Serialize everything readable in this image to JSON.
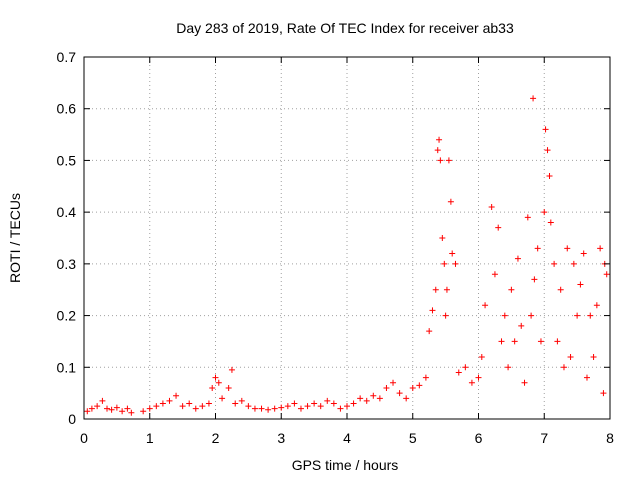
{
  "chart_data": {
    "type": "scatter",
    "marker": "+",
    "color": "#ff0000",
    "title": "Day 283 of 2019, Rate Of TEC Index for receiver ab33",
    "xlabel": "GPS time / hours",
    "ylabel": "ROTI / TECUs",
    "xlim": [
      0,
      8
    ],
    "ylim": [
      0,
      0.7
    ],
    "xticks": [
      "0",
      "1",
      "2",
      "3",
      "4",
      "5",
      "6",
      "7",
      "8"
    ],
    "yticks": [
      "0",
      "0.1",
      "0.2",
      "0.3",
      "0.4",
      "0.5",
      "0.6",
      "0.7"
    ],
    "grid": true,
    "series": [
      {
        "name": "ab33",
        "x": [
          0.05,
          0.12,
          0.2,
          0.28,
          0.35,
          0.42,
          0.5,
          0.58,
          0.66,
          0.72,
          0.9,
          1.0,
          1.1,
          1.2,
          1.3,
          1.4,
          1.5,
          1.6,
          1.7,
          1.8,
          1.9,
          1.95,
          2.0,
          2.05,
          2.1,
          2.2,
          2.25,
          2.3,
          2.4,
          2.5,
          2.6,
          2.7,
          2.8,
          2.9,
          3.0,
          3.1,
          3.2,
          3.3,
          3.4,
          3.5,
          3.6,
          3.7,
          3.8,
          3.9,
          4.0,
          4.1,
          4.2,
          4.3,
          4.4,
          4.5,
          4.6,
          4.7,
          4.8,
          4.9,
          5.0,
          5.1,
          5.2,
          5.25,
          5.3,
          5.35,
          5.38,
          5.4,
          5.42,
          5.45,
          5.48,
          5.5,
          5.52,
          5.55,
          5.58,
          5.6,
          5.65,
          5.7,
          5.8,
          5.9,
          6.0,
          6.05,
          6.1,
          6.2,
          6.25,
          6.3,
          6.35,
          6.4,
          6.45,
          6.5,
          6.55,
          6.6,
          6.65,
          6.7,
          6.75,
          6.8,
          6.83,
          6.85,
          6.9,
          6.95,
          7.0,
          7.02,
          7.05,
          7.08,
          7.1,
          7.15,
          7.2,
          7.25,
          7.3,
          7.35,
          7.4,
          7.45,
          7.5,
          7.55,
          7.6,
          7.65,
          7.7,
          7.75,
          7.8,
          7.85,
          7.9,
          7.92,
          7.95
        ],
        "y": [
          0.015,
          0.02,
          0.025,
          0.035,
          0.02,
          0.018,
          0.022,
          0.015,
          0.02,
          0.012,
          0.015,
          0.02,
          0.025,
          0.03,
          0.035,
          0.045,
          0.025,
          0.03,
          0.02,
          0.025,
          0.03,
          0.06,
          0.08,
          0.07,
          0.04,
          0.06,
          0.095,
          0.03,
          0.035,
          0.025,
          0.02,
          0.02,
          0.018,
          0.02,
          0.022,
          0.025,
          0.03,
          0.02,
          0.025,
          0.03,
          0.025,
          0.035,
          0.03,
          0.02,
          0.025,
          0.03,
          0.04,
          0.035,
          0.045,
          0.04,
          0.06,
          0.07,
          0.05,
          0.04,
          0.06,
          0.065,
          0.08,
          0.17,
          0.21,
          0.25,
          0.52,
          0.54,
          0.5,
          0.35,
          0.3,
          0.2,
          0.25,
          0.5,
          0.42,
          0.32,
          0.3,
          0.09,
          0.1,
          0.07,
          0.08,
          0.12,
          0.22,
          0.41,
          0.28,
          0.37,
          0.15,
          0.2,
          0.1,
          0.25,
          0.15,
          0.31,
          0.18,
          0.07,
          0.39,
          0.2,
          0.62,
          0.27,
          0.33,
          0.15,
          0.4,
          0.56,
          0.52,
          0.47,
          0.38,
          0.3,
          0.15,
          0.25,
          0.1,
          0.33,
          0.12,
          0.3,
          0.2,
          0.26,
          0.32,
          0.08,
          0.2,
          0.12,
          0.22,
          0.33,
          0.05,
          0.3,
          0.28
        ]
      }
    ]
  }
}
